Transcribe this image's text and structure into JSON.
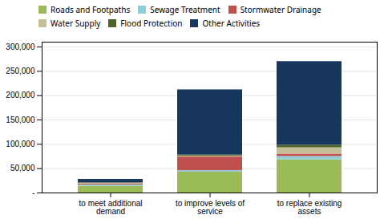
{
  "chart_data": {
    "type": "bar",
    "stacked": true,
    "categories": [
      "to meet additional\ndemand",
      "to improve levels of\nservice",
      "to replace existing\nassets"
    ],
    "series": [
      {
        "name": "Roads and Footpaths",
        "color": "#9BBB59",
        "values": [
          14000,
          43000,
          68000
        ]
      },
      {
        "name": "Sewage Treatment",
        "color": "#92CDDC",
        "values": [
          2500,
          3000,
          7000
        ]
      },
      {
        "name": "Stormwater Drainage",
        "color": "#C0504D",
        "values": [
          2000,
          28000,
          5000
        ]
      },
      {
        "name": "Water Supply",
        "color": "#C4BD97",
        "values": [
          1500,
          2000,
          13000
        ]
      },
      {
        "name": "Flood Protection",
        "color": "#4F6228",
        "values": [
          1000,
          2000,
          5000
        ]
      },
      {
        "name": "Other Activities",
        "color": "#17375E",
        "values": [
          7000,
          134000,
          172000
        ]
      }
    ],
    "ylim": [
      0,
      310000
    ],
    "yticks": [
      {
        "value": 0,
        "label": "-"
      },
      {
        "value": 50000,
        "label": "50,000"
      },
      {
        "value": 100000,
        "label": "100,000"
      },
      {
        "value": 150000,
        "label": "150,000"
      },
      {
        "value": 200000,
        "label": "200,000"
      },
      {
        "value": 250000,
        "label": "250,000"
      },
      {
        "value": 300000,
        "label": "300,000"
      }
    ],
    "grid": true,
    "legend": "top"
  }
}
